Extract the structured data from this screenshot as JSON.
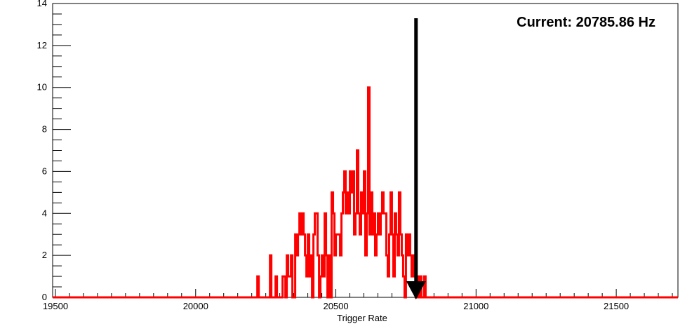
{
  "chart_data": {
    "type": "histogram",
    "title": "",
    "xlabel": "Trigger Rate",
    "ylabel": "",
    "xlim": [
      19490,
      21720
    ],
    "ylim": [
      0,
      14
    ],
    "x_ticks": [
      19500,
      20000,
      20500,
      21000,
      21500
    ],
    "y_ticks": [
      0,
      2,
      4,
      6,
      8,
      10,
      12,
      14
    ],
    "bin_width": 5,
    "grid": false,
    "series": [
      {
        "color": "#ff0000",
        "bins": [
          [
            20220,
            1
          ],
          [
            20225,
            0
          ],
          [
            20260,
            0
          ],
          [
            20265,
            2
          ],
          [
            20270,
            0
          ],
          [
            20280,
            0
          ],
          [
            20285,
            1
          ],
          [
            20290,
            0
          ],
          [
            20305,
            0
          ],
          [
            20310,
            1
          ],
          [
            20315,
            1
          ],
          [
            20320,
            0
          ],
          [
            20325,
            2
          ],
          [
            20330,
            1
          ],
          [
            20335,
            1
          ],
          [
            20340,
            2
          ],
          [
            20345,
            0
          ],
          [
            20350,
            0
          ],
          [
            20355,
            3
          ],
          [
            20360,
            2
          ],
          [
            20365,
            3
          ],
          [
            20370,
            4
          ],
          [
            20375,
            3
          ],
          [
            20380,
            4
          ],
          [
            20385,
            3
          ],
          [
            20390,
            2
          ],
          [
            20395,
            1
          ],
          [
            20400,
            3
          ],
          [
            20405,
            1
          ],
          [
            20410,
            2
          ],
          [
            20415,
            0
          ],
          [
            20420,
            3
          ],
          [
            20425,
            4
          ],
          [
            20430,
            4
          ],
          [
            20435,
            2
          ],
          [
            20440,
            0
          ],
          [
            20445,
            1
          ],
          [
            20450,
            2
          ],
          [
            20455,
            1
          ],
          [
            20460,
            4
          ],
          [
            20465,
            2
          ],
          [
            20470,
            0
          ],
          [
            20475,
            2
          ],
          [
            20480,
            0
          ],
          [
            20485,
            5
          ],
          [
            20490,
            4
          ],
          [
            20495,
            2
          ],
          [
            20500,
            3
          ],
          [
            20505,
            3
          ],
          [
            20510,
            3
          ],
          [
            20515,
            2
          ],
          [
            20520,
            4
          ],
          [
            20525,
            5
          ],
          [
            20530,
            6
          ],
          [
            20535,
            4
          ],
          [
            20540,
            5
          ],
          [
            20545,
            4
          ],
          [
            20550,
            6
          ],
          [
            20555,
            5
          ],
          [
            20560,
            6
          ],
          [
            20565,
            3
          ],
          [
            20570,
            4
          ],
          [
            20575,
            7
          ],
          [
            20580,
            4
          ],
          [
            20585,
            3
          ],
          [
            20590,
            5
          ],
          [
            20595,
            4
          ],
          [
            20600,
            6
          ],
          [
            20605,
            2
          ],
          [
            20610,
            4
          ],
          [
            20615,
            10
          ],
          [
            20620,
            3
          ],
          [
            20625,
            5
          ],
          [
            20630,
            3
          ],
          [
            20635,
            4
          ],
          [
            20640,
            2
          ],
          [
            20645,
            3
          ],
          [
            20650,
            4
          ],
          [
            20655,
            3
          ],
          [
            20660,
            4
          ],
          [
            20665,
            5
          ],
          [
            20670,
            4
          ],
          [
            20675,
            4
          ],
          [
            20680,
            2
          ],
          [
            20685,
            1
          ],
          [
            20690,
            3
          ],
          [
            20695,
            5
          ],
          [
            20700,
            3
          ],
          [
            20705,
            1
          ],
          [
            20710,
            4
          ],
          [
            20715,
            3
          ],
          [
            20720,
            2
          ],
          [
            20725,
            5
          ],
          [
            20730,
            3
          ],
          [
            20735,
            2
          ],
          [
            20740,
            1
          ],
          [
            20745,
            0
          ],
          [
            20750,
            3
          ],
          [
            20755,
            2
          ],
          [
            20760,
            3
          ],
          [
            20765,
            2
          ],
          [
            20770,
            1
          ],
          [
            20775,
            2
          ],
          [
            20780,
            1
          ],
          [
            20785,
            0
          ],
          [
            20790,
            1
          ],
          [
            20795,
            0
          ],
          [
            20800,
            1
          ],
          [
            20805,
            0
          ],
          [
            20810,
            0
          ],
          [
            20815,
            1
          ],
          [
            20820,
            0
          ]
        ]
      }
    ],
    "marker": {
      "x": 20785.86,
      "label": "Current: 20785.86 Hz"
    }
  }
}
